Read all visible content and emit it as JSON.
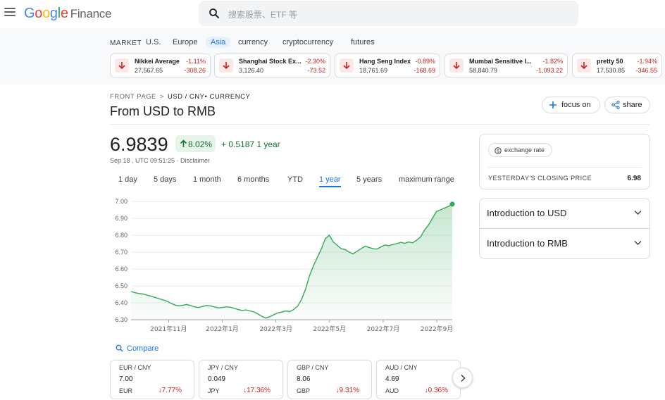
{
  "header": {
    "logo_text": "Google",
    "logo_product": "Finance",
    "search_placeholder": "搜索股票、ETF 等"
  },
  "market": {
    "label": "MARKET",
    "tabs": [
      "U.S.",
      "Europe",
      "Asia",
      "currency",
      "cryptocurrency",
      "futures"
    ],
    "active_tab": "Asia",
    "tickers": [
      {
        "name": "Nikkei Average",
        "value": "27,567.65",
        "pct": "-1.11%",
        "change": "-308.26"
      },
      {
        "name": "Shanghai Stock Ex...",
        "value": "3,126.40",
        "pct": "-2.30%",
        "change": "-73.52"
      },
      {
        "name": "Hang Seng Index",
        "value": "18,761.69",
        "pct": "-0.89%",
        "change": "-168.69"
      },
      {
        "name": "Mumbai Sensitive I...",
        "value": "58,840.79",
        "pct": "-1.82%",
        "change": "-1,093.22"
      },
      {
        "name": "pretty 50",
        "value": "17,530.85",
        "pct": "-1.94%",
        "change": "-346.55"
      }
    ]
  },
  "breadcrumb": {
    "root": "FRONT PAGE",
    "separator": ">",
    "current": "USD / CNY• CURRENCY"
  },
  "title": "From USD to RMB",
  "actions": {
    "focus_label": "focus on",
    "share_label": "share"
  },
  "quote": {
    "price": "6.9839",
    "pct": "8.02%",
    "change": "+ 0.5187 1 year",
    "timestamp": "Sep 18 , UTC 09:51:25 · Disclaimer"
  },
  "ranges": [
    "1 day",
    "5 days",
    "1 month",
    "6 months",
    "YTD",
    "1 year",
    "5 years",
    "maximum range"
  ],
  "active_range": "1 year",
  "chart_data": {
    "type": "area",
    "ylim": [
      6.3,
      7.0
    ],
    "yticks": [
      "7.00",
      "6.90",
      "6.80",
      "6.70",
      "6.60",
      "6.50",
      "6.40",
      "6.30"
    ],
    "xticks": [
      "2021年11月",
      "2022年1月",
      "2022年3月",
      "2022年5月",
      "2022年7月",
      "2022年9月"
    ],
    "line_color": "#34a853",
    "series": [
      {
        "values": [
          6.467,
          6.46,
          6.455,
          6.452,
          6.446,
          6.44,
          6.432,
          6.425,
          6.418,
          6.41,
          6.398,
          6.388,
          6.382,
          6.385,
          6.39,
          6.384,
          6.376,
          6.372,
          6.378,
          6.384,
          6.382,
          6.376,
          6.37,
          6.372,
          6.376,
          6.374,
          6.368,
          6.36,
          6.355,
          6.358,
          6.352,
          6.346,
          6.334,
          6.32,
          6.31,
          6.318,
          6.33,
          6.34,
          6.345,
          6.352,
          6.348,
          6.36,
          6.38,
          6.42,
          6.48,
          6.56,
          6.62,
          6.67,
          6.72,
          6.78,
          6.8,
          6.76,
          6.74,
          6.72,
          6.715,
          6.7,
          6.69,
          6.705,
          6.72,
          6.735,
          6.728,
          6.72,
          6.718,
          6.73,
          6.742,
          6.738,
          6.745,
          6.75,
          6.758,
          6.752,
          6.76,
          6.755,
          6.77,
          6.79,
          6.83,
          6.86,
          6.9,
          6.94,
          6.95,
          6.96,
          6.97,
          6.984
        ]
      }
    ]
  },
  "compare": {
    "label": "Compare",
    "cards": [
      {
        "pair": "EUR / CNY",
        "value": "7.00",
        "currency": "EUR",
        "change": "7.77%"
      },
      {
        "pair": "JPY / CNY",
        "value": "0.049",
        "currency": "JPY",
        "change": "17.36%"
      },
      {
        "pair": "GBP / CNY",
        "value": "8.06",
        "currency": "GBP",
        "change": "9.31%"
      },
      {
        "pair": "AUD / CNY",
        "value": "4.69",
        "currency": "AUD",
        "change": "0.36%"
      }
    ]
  },
  "right_panel": {
    "chip_label": "exchange rate",
    "closing_label": "YESTERDAY'S CLOSING PRICE",
    "closing_value": "6.98",
    "accordions": [
      "Introduction to USD",
      "Introduction to RMB"
    ]
  }
}
